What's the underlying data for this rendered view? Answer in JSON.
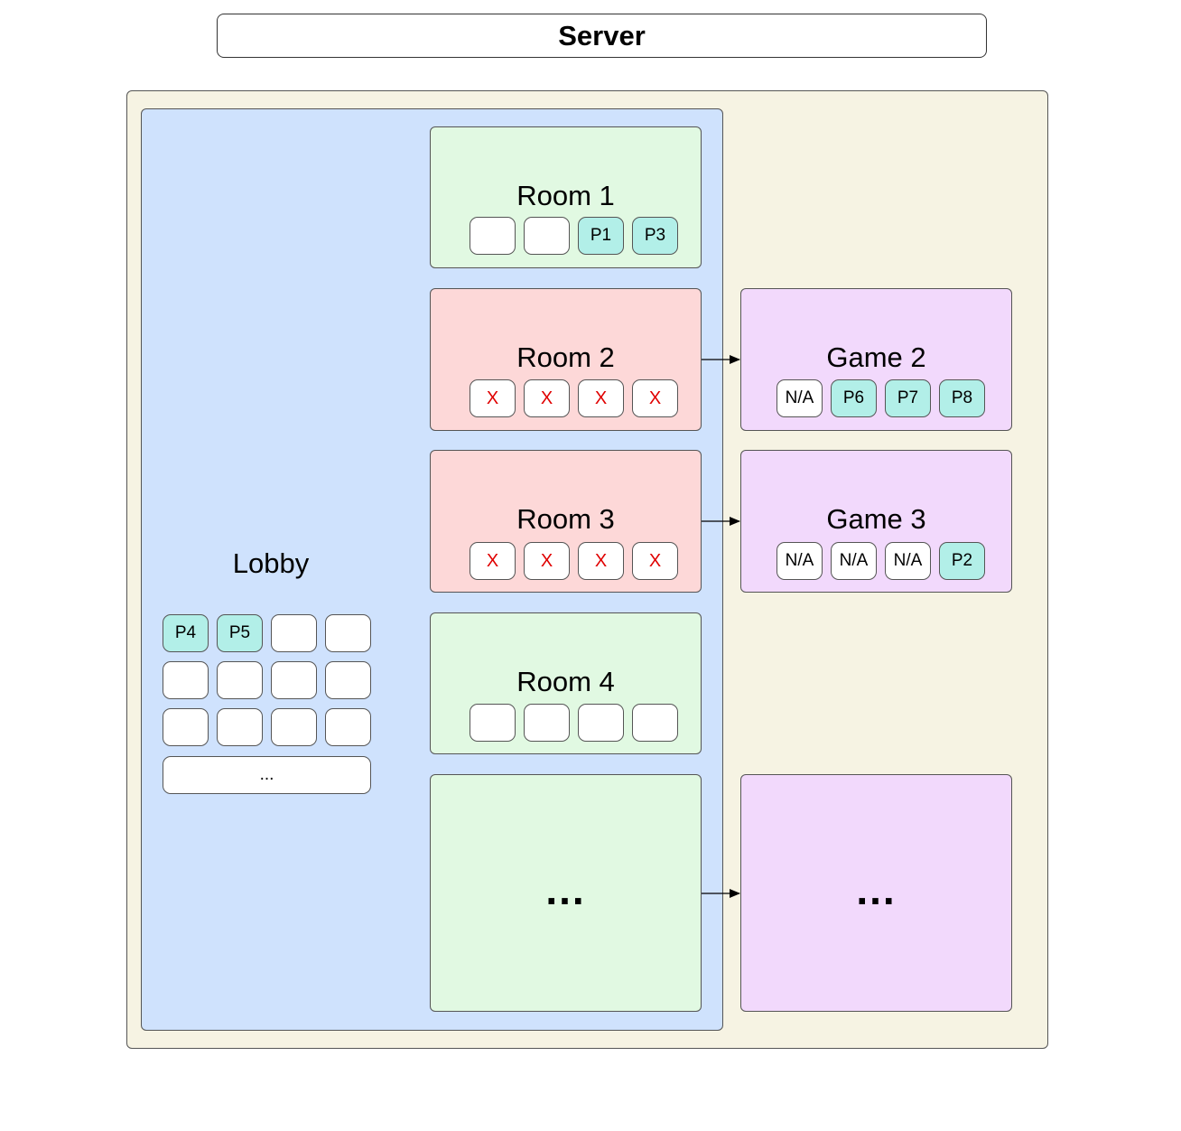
{
  "server": {
    "title": "Server"
  },
  "lobby": {
    "label": "Lobby",
    "slots": [
      "P4",
      "P5",
      "",
      "",
      "",
      "",
      "",
      "",
      "",
      "",
      "",
      ""
    ],
    "more": "..."
  },
  "rooms": [
    {
      "label": "Room 1",
      "status": "open",
      "slots": [
        "",
        "",
        "P1",
        "P3"
      ]
    },
    {
      "label": "Room 2",
      "status": "full",
      "slots": [
        "X",
        "X",
        "X",
        "X"
      ]
    },
    {
      "label": "Room 3",
      "status": "full",
      "slots": [
        "X",
        "X",
        "X",
        "X"
      ]
    },
    {
      "label": "Room 4",
      "status": "open",
      "slots": [
        "",
        "",
        "",
        ""
      ]
    },
    {
      "label": "...",
      "status": "open",
      "slots": []
    }
  ],
  "games": [
    {
      "label": "Game 2",
      "slots": [
        "N/A",
        "P6",
        "P7",
        "P8"
      ]
    },
    {
      "label": "Game 3",
      "slots": [
        "N/A",
        "N/A",
        "N/A",
        "P2"
      ]
    },
    {
      "label": "...",
      "slots": []
    }
  ],
  "colors": {
    "server_bg": "#f6f3e3",
    "lobby_bg": "#cfe2fd",
    "room_open_bg": "#e1f9e2",
    "room_full_bg": "#fdd8d8",
    "game_bg": "#f2d9fc",
    "player_slot_bg": "#b2efe8",
    "blocked_text": "#e00000"
  }
}
